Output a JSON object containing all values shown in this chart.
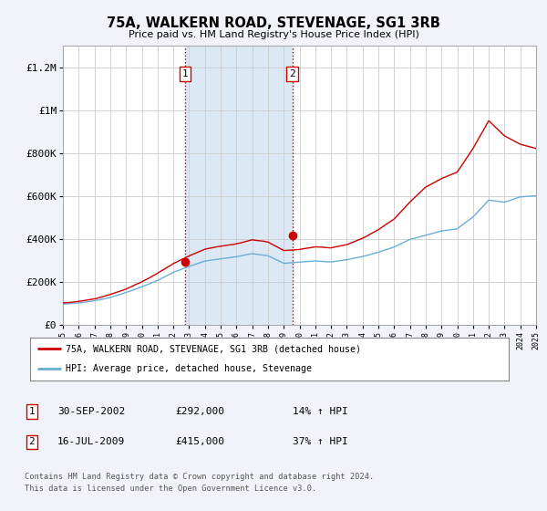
{
  "title": "75A, WALKERN ROAD, STEVENAGE, SG1 3RB",
  "subtitle": "Price paid vs. HM Land Registry's House Price Index (HPI)",
  "bg_color": "#f0f4fa",
  "plot_bg_color": "#ffffff",
  "x_start_year": 1995,
  "x_end_year": 2025,
  "y_min": 0,
  "y_max": 1300000,
  "yticks": [
    0,
    200000,
    400000,
    600000,
    800000,
    1000000,
    1200000
  ],
  "ytick_labels": [
    "£0",
    "£200K",
    "£400K",
    "£600K",
    "£800K",
    "£1M",
    "£1.2M"
  ],
  "sale1_year": 2002.75,
  "sale1_value": 292000,
  "sale2_year": 2009.54,
  "sale2_value": 415000,
  "vline_color": "#cc0000",
  "vline_style": ":",
  "sale_marker_color": "#cc0000",
  "hpi_line_color": "#6aaed6",
  "price_line_color": "#cc0000",
  "legend_label_price": "75A, WALKERN ROAD, STEVENAGE, SG1 3RB (detached house)",
  "legend_label_hpi": "HPI: Average price, detached house, Stevenage",
  "table_rows": [
    {
      "num": "1",
      "date": "30-SEP-2002",
      "price": "£292,000",
      "change": "14% ↑ HPI"
    },
    {
      "num": "2",
      "date": "16-JUL-2009",
      "price": "£415,000",
      "change": "37% ↑ HPI"
    }
  ],
  "footer": "Contains HM Land Registry data © Crown copyright and database right 2024.\nThis data is licensed under the Open Government Licence v3.0.",
  "highlight_color": "#dce9f5",
  "hpi_knots_x": [
    1995,
    1996,
    1997,
    1998,
    1999,
    2000,
    2001,
    2002,
    2003,
    2004,
    2005,
    2006,
    2007,
    2008,
    2009,
    2010,
    2011,
    2012,
    2013,
    2014,
    2015,
    2016,
    2017,
    2018,
    2019,
    2020,
    2021,
    2022,
    2023,
    2024,
    2025
  ],
  "hpi_knots_y": [
    95000,
    100000,
    110000,
    125000,
    148000,
    175000,
    205000,
    242000,
    270000,
    295000,
    305000,
    315000,
    330000,
    320000,
    285000,
    290000,
    295000,
    290000,
    300000,
    315000,
    335000,
    360000,
    395000,
    415000,
    435000,
    445000,
    500000,
    580000,
    570000,
    595000,
    600000
  ],
  "price_knots_x": [
    1995,
    1996,
    1997,
    1998,
    1999,
    2000,
    2001,
    2002,
    2003,
    2004,
    2005,
    2006,
    2007,
    2008,
    2009,
    2010,
    2011,
    2012,
    2013,
    2014,
    2015,
    2016,
    2017,
    2018,
    2019,
    2020,
    2021,
    2022,
    2023,
    2024,
    2025
  ],
  "price_knots_y": [
    100000,
    108000,
    120000,
    140000,
    165000,
    200000,
    240000,
    285000,
    320000,
    350000,
    365000,
    375000,
    395000,
    385000,
    345000,
    350000,
    360000,
    355000,
    370000,
    400000,
    440000,
    490000,
    570000,
    640000,
    680000,
    710000,
    820000,
    950000,
    880000,
    840000,
    820000
  ]
}
